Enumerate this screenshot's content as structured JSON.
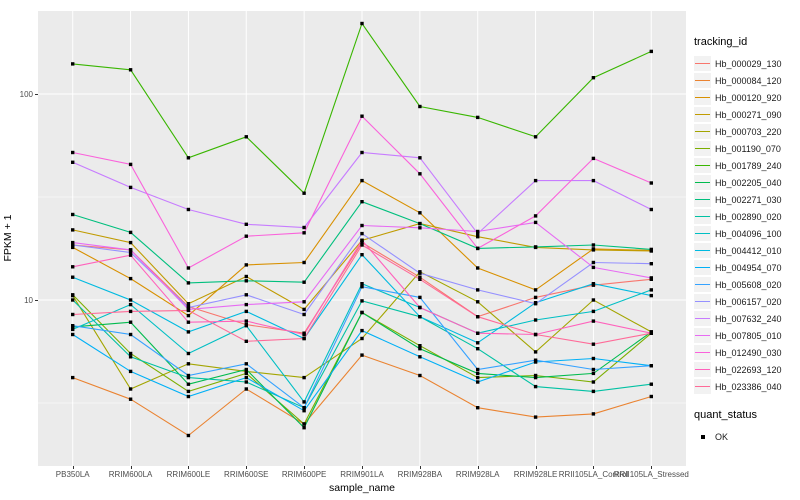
{
  "chart": {
    "y_axis_title": "FPKM + 1",
    "x_axis_title": "sample_name",
    "y_ticks": [
      {
        "label": "100",
        "value": 100
      },
      {
        "label": "10",
        "value": 10
      }
    ],
    "legend": {
      "tracking_title": "tracking_id",
      "quant_title": "quant_status",
      "quant_ok_label": "OK"
    },
    "colors": {
      "panel_bg": "#EBEBEB",
      "gridline": "#FFFFFF",
      "point": "#000000",
      "legend_key_bg": "#F2F2F2",
      "tick_text": "#4d4d4d"
    }
  },
  "chart_data": {
    "type": "line",
    "title": "",
    "xlabel": "sample_name",
    "ylabel": "FPKM + 1",
    "y_scale": "log10",
    "ylim": [
      1.56,
      246
    ],
    "grid": "on",
    "legend_position": "right",
    "point_shape": "filled-square",
    "categories": [
      "PB350LA",
      "RRIM600LA",
      "RRIM600LE",
      "RRIM600SE",
      "RRIM600PE",
      "RRIM901LA",
      "RRIM928BA",
      "RRIM928LA",
      "RRIM928LE",
      "RRII105LA_Control",
      "RRII105LA_Stressed"
    ],
    "series": [
      {
        "name": "Hb_000029_130",
        "color": "#F8766D",
        "values": [
          18.5,
          17.5,
          9.3,
          7.6,
          6.9,
          19.0,
          12.9,
          8.3,
          10.3,
          11.8,
          12.6
        ]
      },
      {
        "name": "Hb_000084_120",
        "color": "#EA8331",
        "values": [
          4.2,
          3.3,
          2.2,
          3.7,
          2.5,
          5.4,
          4.3,
          3.0,
          2.7,
          2.8,
          3.4
        ]
      },
      {
        "name": "Hb_000120_920",
        "color": "#D89000",
        "values": [
          18.0,
          12.7,
          8.4,
          14.8,
          15.2,
          38.0,
          26.5,
          14.3,
          11.2,
          17.7,
          17.4
        ]
      },
      {
        "name": "Hb_000271_090",
        "color": "#C09B00",
        "values": [
          21.9,
          19.0,
          9.6,
          13.0,
          9.0,
          19.5,
          23.5,
          20.3,
          18.0,
          17.5,
          17.3
        ]
      },
      {
        "name": "Hb_000703_220",
        "color": "#A3A500",
        "values": [
          10.5,
          3.7,
          4.9,
          4.5,
          4.2,
          6.5,
          13.7,
          9.8,
          5.6,
          10.0,
          7.0
        ]
      },
      {
        "name": "Hb_001190_070",
        "color": "#7CAE00",
        "values": [
          10.6,
          5.5,
          3.6,
          4.4,
          2.5,
          8.7,
          6.0,
          4.2,
          4.3,
          4.0,
          6.9
        ]
      },
      {
        "name": "Hb_001789_240",
        "color": "#39B600",
        "values": [
          140,
          131,
          49,
          62,
          33,
          220,
          87,
          77,
          62,
          120,
          161
        ]
      },
      {
        "name": "Hb_002205_040",
        "color": "#00BB4E",
        "values": [
          7.4,
          7.8,
          3.9,
          4.6,
          2.4,
          8.7,
          5.8,
          4.4,
          4.2,
          4.4,
          7.0
        ]
      },
      {
        "name": "Hb_002271_030",
        "color": "#00BF7D",
        "values": [
          26.0,
          21.3,
          12.1,
          12.4,
          12.2,
          30.0,
          23.5,
          17.8,
          18.1,
          18.5,
          17.6
        ]
      },
      {
        "name": "Hb_002890_020",
        "color": "#00C1A3",
        "values": [
          10.0,
          5.3,
          4.2,
          4.0,
          3.0,
          9.9,
          8.3,
          5.8,
          3.8,
          3.6,
          3.9
        ]
      },
      {
        "name": "Hb_004096_100",
        "color": "#00BFC4",
        "values": [
          7.2,
          9.5,
          5.5,
          7.5,
          3.2,
          12.0,
          9.2,
          6.9,
          8.0,
          8.8,
          11.2
        ]
      },
      {
        "name": "Hb_004412_010",
        "color": "#00BAE0",
        "values": [
          12.9,
          10.0,
          7.0,
          8.8,
          6.5,
          16.6,
          8.3,
          6.2,
          9.7,
          12.0,
          10.5
        ]
      },
      {
        "name": "Hb_004954_070",
        "color": "#00B0F6",
        "values": [
          6.8,
          4.5,
          3.4,
          4.2,
          2.9,
          7.1,
          5.3,
          4.0,
          5.0,
          5.2,
          4.8
        ]
      },
      {
        "name": "Hb_005608_020",
        "color": "#35A2FF",
        "values": [
          7.5,
          6.8,
          4.3,
          4.9,
          3.0,
          11.6,
          10.3,
          4.6,
          5.1,
          4.6,
          4.8
        ]
      },
      {
        "name": "Hb_006157_020",
        "color": "#9590FF",
        "values": [
          18.5,
          17.0,
          9.2,
          10.6,
          8.5,
          21.0,
          13.5,
          11.2,
          9.6,
          15.2,
          15.0
        ]
      },
      {
        "name": "Hb_007632_240",
        "color": "#C77CFF",
        "values": [
          46.6,
          35.2,
          27.5,
          23.3,
          22.5,
          52.0,
          49.0,
          21.0,
          38.0,
          38.0,
          27.5
        ]
      },
      {
        "name": "Hb_007805_010",
        "color": "#E76BF3",
        "values": [
          19.0,
          17.5,
          9.0,
          9.5,
          9.8,
          23.0,
          22.4,
          21.5,
          23.8,
          14.4,
          12.8
        ]
      },
      {
        "name": "Hb_012490_030",
        "color": "#FA62DB",
        "values": [
          52.0,
          45.5,
          14.3,
          20.4,
          21.2,
          78.0,
          41.0,
          17.8,
          25.6,
          48.7,
          37.0
        ]
      },
      {
        "name": "Hb_022693_120",
        "color": "#FF62BC",
        "values": [
          14.5,
          16.5,
          7.8,
          7.9,
          6.8,
          19.5,
          9.2,
          6.9,
          6.8,
          7.9,
          6.9
        ]
      },
      {
        "name": "Hb_023386_040",
        "color": "#FF6A98",
        "values": [
          8.5,
          8.8,
          8.9,
          6.3,
          6.5,
          18.5,
          12.6,
          8.3,
          6.8,
          6.1,
          6.9
        ]
      }
    ],
    "quant_status": {
      "label": "OK",
      "marker": "black-square"
    }
  }
}
